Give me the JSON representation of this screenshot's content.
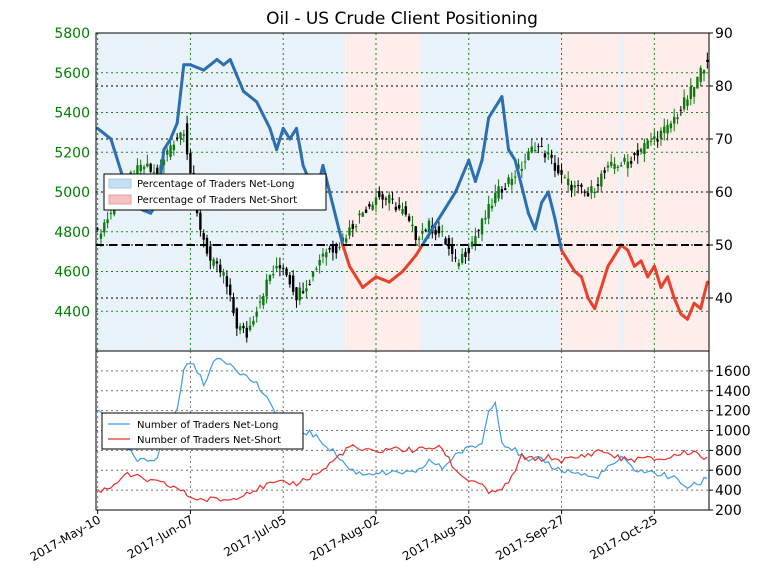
{
  "chart_data": [
    {
      "type": "candlestick+line",
      "title": "Oil - US Crude Client Positioning",
      "left_axis": {
        "ylim": [
          4200,
          5800
        ],
        "ticks": [
          4400,
          4600,
          4800,
          5000,
          5200,
          5400,
          5600,
          5800
        ],
        "tick_color": "#008000"
      },
      "right_axis": {
        "ylim": [
          30,
          90
        ],
        "ticks": [
          40,
          50,
          60,
          70,
          80,
          90
        ]
      },
      "x_dates": [
        "2017-May-10",
        "2017-Jun-07",
        "2017-Jul-05",
        "2017-Aug-02",
        "2017-Aug-30",
        "2017-Sep-27",
        "2017-Oct-25"
      ],
      "legend": [
        {
          "label": "Percentage of Traders Net-Long",
          "color": "#c6dff2"
        },
        {
          "label": "Percentage of Traders Net-Short",
          "color": "#f6c1c1"
        }
      ],
      "reference_line": 50,
      "price_keypoints": [
        [
          0,
          4790
        ],
        [
          6,
          4950
        ],
        [
          10,
          5080
        ],
        [
          14,
          5130
        ],
        [
          18,
          5080
        ],
        [
          22,
          5240
        ],
        [
          26,
          5320
        ],
        [
          30,
          4880
        ],
        [
          34,
          4650
        ],
        [
          38,
          4580
        ],
        [
          42,
          4330
        ],
        [
          45,
          4280
        ],
        [
          48,
          4420
        ],
        [
          52,
          4580
        ],
        [
          56,
          4630
        ],
        [
          60,
          4480
        ],
        [
          64,
          4560
        ],
        [
          68,
          4700
        ],
        [
          72,
          4720
        ],
        [
          76,
          4810
        ],
        [
          80,
          4900
        ],
        [
          84,
          4980
        ],
        [
          88,
          4960
        ],
        [
          92,
          4900
        ],
        [
          96,
          4780
        ],
        [
          100,
          4830
        ],
        [
          104,
          4780
        ],
        [
          108,
          4640
        ],
        [
          112,
          4720
        ],
        [
          116,
          4840
        ],
        [
          120,
          4980
        ],
        [
          124,
          5060
        ],
        [
          128,
          5130
        ],
        [
          132,
          5240
        ],
        [
          136,
          5180
        ],
        [
          140,
          5070
        ],
        [
          144,
          5020
        ],
        [
          148,
          4980
        ],
        [
          152,
          5080
        ],
        [
          156,
          5140
        ],
        [
          160,
          5150
        ],
        [
          164,
          5220
        ],
        [
          168,
          5270
        ],
        [
          172,
          5320
        ],
        [
          176,
          5420
        ],
        [
          180,
          5530
        ],
        [
          184,
          5680
        ]
      ],
      "pct_long_keypoints": [
        [
          0,
          72
        ],
        [
          4,
          70
        ],
        [
          8,
          62
        ],
        [
          12,
          57
        ],
        [
          16,
          56
        ],
        [
          18,
          58
        ],
        [
          20,
          68
        ],
        [
          22,
          70
        ],
        [
          24,
          73
        ],
        [
          26,
          84
        ],
        [
          28,
          84
        ],
        [
          32,
          83
        ],
        [
          36,
          85
        ],
        [
          38,
          84
        ],
        [
          40,
          85
        ],
        [
          44,
          79
        ],
        [
          48,
          77
        ],
        [
          52,
          72
        ],
        [
          54,
          68
        ],
        [
          56,
          72
        ],
        [
          58,
          70
        ],
        [
          60,
          72
        ],
        [
          62,
          65
        ],
        [
          64,
          62
        ],
        [
          66,
          60
        ],
        [
          68,
          65
        ],
        [
          70,
          60
        ],
        [
          72,
          55
        ],
        [
          74,
          50
        ],
        [
          76,
          46
        ],
        [
          80,
          42
        ],
        [
          84,
          44
        ],
        [
          88,
          43
        ],
        [
          92,
          45
        ],
        [
          96,
          48
        ],
        [
          100,
          52
        ],
        [
          104,
          56
        ],
        [
          108,
          60
        ],
        [
          110,
          63
        ],
        [
          112,
          66
        ],
        [
          114,
          62
        ],
        [
          116,
          66
        ],
        [
          118,
          74
        ],
        [
          120,
          76
        ],
        [
          122,
          78
        ],
        [
          124,
          68
        ],
        [
          126,
          66
        ],
        [
          128,
          61
        ],
        [
          130,
          56
        ],
        [
          132,
          53
        ],
        [
          134,
          58
        ],
        [
          136,
          60
        ],
        [
          138,
          55
        ],
        [
          140,
          49
        ],
        [
          142,
          47
        ],
        [
          144,
          45
        ],
        [
          146,
          44
        ],
        [
          148,
          40
        ],
        [
          150,
          38
        ],
        [
          152,
          42
        ],
        [
          154,
          46
        ],
        [
          156,
          48
        ],
        [
          158,
          50
        ],
        [
          160,
          49
        ],
        [
          162,
          46
        ],
        [
          164,
          47
        ],
        [
          166,
          44
        ],
        [
          168,
          46
        ],
        [
          170,
          42
        ],
        [
          172,
          44
        ],
        [
          174,
          40
        ],
        [
          176,
          37
        ],
        [
          178,
          36
        ],
        [
          180,
          39
        ],
        [
          182,
          38
        ],
        [
          184,
          43
        ]
      ]
    },
    {
      "type": "line",
      "ylim": [
        200,
        1800
      ],
      "yticks": [
        200,
        400,
        600,
        800,
        1000,
        1200,
        1400,
        1600
      ],
      "legend": [
        {
          "label": "Number of Traders Net-Long",
          "color": "#3e9be9"
        },
        {
          "label": "Number of Traders Net-Short",
          "color": "#e8302a"
        }
      ],
      "series": [
        {
          "name": "Number of Traders Net-Long",
          "color": "#3e9be9",
          "keypoints": [
            [
              0,
              1200
            ],
            [
              4,
              1120
            ],
            [
              8,
              860
            ],
            [
              12,
              690
            ],
            [
              16,
              700
            ],
            [
              18,
              740
            ],
            [
              20,
              1000
            ],
            [
              22,
              1120
            ],
            [
              24,
              1200
            ],
            [
              26,
              1620
            ],
            [
              28,
              1700
            ],
            [
              32,
              1480
            ],
            [
              36,
              1730
            ],
            [
              40,
              1680
            ],
            [
              44,
              1560
            ],
            [
              48,
              1470
            ],
            [
              52,
              1260
            ],
            [
              56,
              1080
            ],
            [
              60,
              980
            ],
            [
              64,
              980
            ],
            [
              68,
              880
            ],
            [
              72,
              760
            ],
            [
              76,
              610
            ],
            [
              80,
              560
            ],
            [
              84,
              580
            ],
            [
              88,
              560
            ],
            [
              92,
              580
            ],
            [
              96,
              560
            ],
            [
              100,
              700
            ],
            [
              104,
              620
            ],
            [
              108,
              760
            ],
            [
              112,
              820
            ],
            [
              116,
              870
            ],
            [
              118,
              1200
            ],
            [
              120,
              1310
            ],
            [
              122,
              880
            ],
            [
              126,
              800
            ],
            [
              130,
              680
            ],
            [
              134,
              720
            ],
            [
              138,
              620
            ],
            [
              142,
              590
            ],
            [
              146,
              560
            ],
            [
              150,
              520
            ],
            [
              154,
              620
            ],
            [
              158,
              720
            ],
            [
              162,
              610
            ],
            [
              166,
              580
            ],
            [
              170,
              560
            ],
            [
              174,
              520
            ],
            [
              178,
              430
            ],
            [
              182,
              470
            ],
            [
              184,
              540
            ]
          ]
        },
        {
          "name": "Number of Traders Net-Short",
          "color": "#e8302a",
          "keypoints": [
            [
              0,
              390
            ],
            [
              4,
              430
            ],
            [
              8,
              560
            ],
            [
              12,
              530
            ],
            [
              16,
              490
            ],
            [
              20,
              460
            ],
            [
              24,
              420
            ],
            [
              28,
              330
            ],
            [
              32,
              300
            ],
            [
              36,
              310
            ],
            [
              40,
              300
            ],
            [
              44,
              370
            ],
            [
              48,
              410
            ],
            [
              52,
              460
            ],
            [
              56,
              470
            ],
            [
              60,
              470
            ],
            [
              64,
              530
            ],
            [
              68,
              600
            ],
            [
              72,
              720
            ],
            [
              76,
              840
            ],
            [
              80,
              800
            ],
            [
              84,
              780
            ],
            [
              88,
              820
            ],
            [
              92,
              810
            ],
            [
              96,
              800
            ],
            [
              100,
              830
            ],
            [
              104,
              820
            ],
            [
              108,
              600
            ],
            [
              112,
              500
            ],
            [
              116,
              470
            ],
            [
              118,
              350
            ],
            [
              120,
              380
            ],
            [
              124,
              460
            ],
            [
              128,
              740
            ],
            [
              132,
              700
            ],
            [
              136,
              730
            ],
            [
              140,
              700
            ],
            [
              144,
              720
            ],
            [
              148,
              760
            ],
            [
              152,
              800
            ],
            [
              156,
              740
            ],
            [
              160,
              700
            ],
            [
              164,
              720
            ],
            [
              168,
              710
            ],
            [
              172,
              720
            ],
            [
              176,
              770
            ],
            [
              180,
              790
            ],
            [
              184,
              710
            ]
          ]
        }
      ]
    }
  ]
}
